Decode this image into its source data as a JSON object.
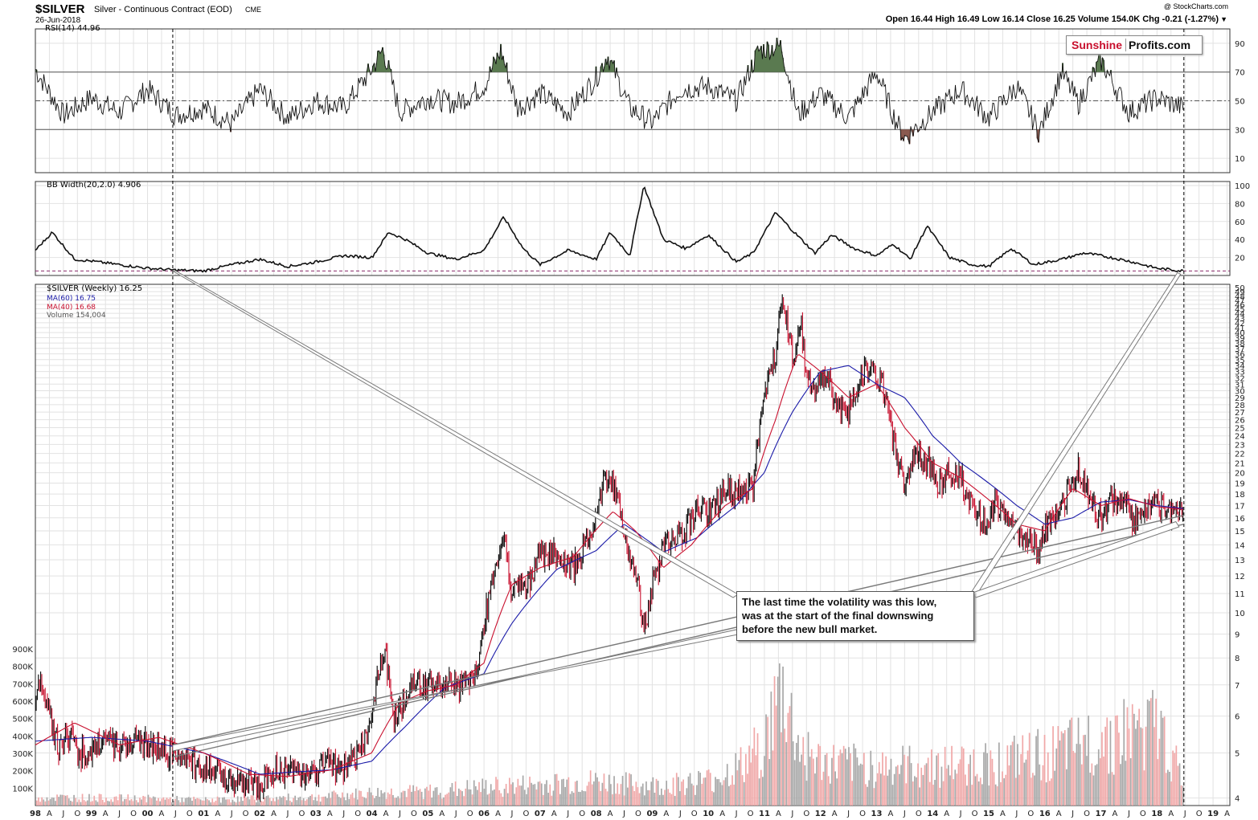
{
  "header": {
    "symbol": "$SILVER",
    "description": "Silver - Continuous Contract (EOD)",
    "exchange": "CME",
    "date": "26-Jun-2018",
    "ohlc": "Open 16.44  High 16.49  Low 16.14  Close 16.25  Volume 154.0K  Chg -0.21 (-1.27%)",
    "chg_marker": "▼",
    "credit": "@ StockCharts.com"
  },
  "logo": {
    "part1": "Sunshine",
    "part2": "Profits.com"
  },
  "colors": {
    "price": "#000000",
    "price_down": "#c8102e",
    "ma60": "#1a1aa8",
    "ma40": "#c8102e",
    "volume_up": "#a8a8a8",
    "volume_down": "#f0a8a8",
    "rsi_over": "#5a7a50",
    "rsi_under": "#8a5a50",
    "trendline": "#7a7a7a",
    "dashed": "#000000",
    "bb_ref": "#8a2a6a"
  },
  "chart_data": [
    {
      "type": "line",
      "panel": "rsi",
      "label": "RSI(14) 44.96",
      "ylim": [
        0,
        100
      ],
      "y_ticks": [
        "90",
        "70",
        "50",
        "30",
        "10"
      ],
      "levels": [
        70,
        50,
        30
      ],
      "x": [
        1998.0,
        1998.5,
        1999.0,
        1999.5,
        2000.0,
        2000.5,
        2001.0,
        2001.5,
        2002.0,
        2002.5,
        2003.0,
        2003.5,
        2004.0,
        2004.2,
        2004.5,
        2005.0,
        2005.5,
        2006.0,
        2006.3,
        2006.6,
        2007.0,
        2007.5,
        2008.0,
        2008.2,
        2008.6,
        2009.0,
        2009.5,
        2010.0,
        2010.5,
        2010.9,
        2011.3,
        2011.6,
        2012.0,
        2012.5,
        2013.0,
        2013.3,
        2013.5,
        2014.0,
        2014.5,
        2015.0,
        2015.5,
        2015.9,
        2016.3,
        2016.6,
        2017.0,
        2017.5,
        2018.0,
        2018.48
      ],
      "values": [
        72,
        40,
        52,
        42,
        58,
        40,
        45,
        34,
        58,
        38,
        50,
        45,
        72,
        86,
        42,
        52,
        48,
        60,
        85,
        45,
        55,
        42,
        66,
        82,
        45,
        35,
        58,
        60,
        50,
        85,
        88,
        40,
        55,
        38,
        70,
        40,
        24,
        42,
        58,
        38,
        60,
        28,
        70,
        48,
        78,
        42,
        52,
        45
      ]
    },
    {
      "type": "line",
      "panel": "bb_width",
      "label": "BB Width(20,2.0) 4.906",
      "ylim": [
        0,
        100
      ],
      "y_ticks": [
        "100",
        "80",
        "60",
        "40",
        "20"
      ],
      "reference_level": 5,
      "x": [
        1998.0,
        1998.3,
        1998.7,
        1999.0,
        1999.5,
        2000.0,
        2000.5,
        2001.0,
        2001.5,
        2002.0,
        2002.5,
        2003.0,
        2003.5,
        2004.0,
        2004.3,
        2004.6,
        2005.0,
        2005.5,
        2006.0,
        2006.35,
        2006.7,
        2007.0,
        2007.5,
        2008.0,
        2008.25,
        2008.6,
        2008.85,
        2009.2,
        2009.6,
        2010.0,
        2010.5,
        2010.8,
        2011.2,
        2011.5,
        2011.9,
        2012.2,
        2012.6,
        2013.0,
        2013.3,
        2013.6,
        2013.9,
        2014.3,
        2014.7,
        2015.0,
        2015.4,
        2015.8,
        2016.3,
        2016.7,
        2017.0,
        2017.5,
        2018.0,
        2018.48
      ],
      "values": [
        28,
        48,
        18,
        16,
        12,
        8,
        6,
        5,
        12,
        18,
        10,
        15,
        22,
        20,
        48,
        40,
        25,
        18,
        28,
        65,
        30,
        12,
        28,
        18,
        48,
        22,
        100,
        40,
        30,
        45,
        15,
        25,
        70,
        50,
        25,
        45,
        30,
        22,
        35,
        18,
        55,
        20,
        12,
        10,
        30,
        12,
        18,
        25,
        22,
        16,
        8,
        4.9
      ]
    },
    {
      "type": "line",
      "panel": "price",
      "label": "$SILVER (Weekly) 16.25",
      "scale": "log",
      "ylim": [
        3.9,
        50
      ],
      "y_ticks": [
        "50",
        "49",
        "48",
        "47",
        "46",
        "45",
        "44",
        "43",
        "42",
        "41",
        "40",
        "39",
        "38",
        "37",
        "36",
        "35",
        "34",
        "33",
        "32",
        "31",
        "30",
        "29",
        "28",
        "27",
        "26",
        "25",
        "24",
        "23",
        "22",
        "21",
        "20",
        "19",
        "18",
        "17",
        "16",
        "15",
        "14",
        "13",
        "12",
        "11",
        "10",
        "9",
        "8",
        "7",
        "6",
        "5",
        "4"
      ],
      "series": [
        {
          "name": "$SILVER (Weekly) 16.25",
          "x": [
            1998.0,
            1998.1,
            1998.25,
            1998.4,
            1998.6,
            1998.8,
            1999.0,
            1999.3,
            1999.6,
            1999.8,
            2000.0,
            2000.3,
            2000.6,
            2000.9,
            2001.2,
            2001.5,
            2001.8,
            2002.0,
            2002.3,
            2002.6,
            2002.9,
            2003.2,
            2003.5,
            2003.8,
            2004.0,
            2004.1,
            2004.25,
            2004.4,
            2004.6,
            2004.8,
            2005.0,
            2005.3,
            2005.6,
            2005.9,
            2006.0,
            2006.2,
            2006.35,
            2006.5,
            2006.8,
            2007.0,
            2007.3,
            2007.6,
            2007.9,
            2008.0,
            2008.2,
            2008.4,
            2008.6,
            2008.75,
            2008.85,
            2009.0,
            2009.3,
            2009.6,
            2009.9,
            2010.0,
            2010.3,
            2010.6,
            2010.8,
            2011.0,
            2011.2,
            2011.32,
            2011.5,
            2011.65,
            2011.75,
            2011.9,
            2012.1,
            2012.3,
            2012.5,
            2012.7,
            2012.9,
            2013.1,
            2013.3,
            2013.5,
            2013.7,
            2013.9,
            2014.1,
            2014.3,
            2014.5,
            2014.7,
            2014.9,
            2015.1,
            2015.3,
            2015.5,
            2015.7,
            2015.9,
            2016.0,
            2016.2,
            2016.4,
            2016.6,
            2016.8,
            2017.0,
            2017.2,
            2017.4,
            2017.6,
            2017.8,
            2018.0,
            2018.2,
            2018.48
          ],
          "values": [
            6.2,
            7.2,
            6.0,
            5.1,
            5.5,
            5.0,
            5.1,
            5.3,
            5.2,
            5.4,
            5.2,
            5.0,
            5.0,
            4.7,
            4.5,
            4.4,
            4.3,
            4.25,
            4.65,
            4.6,
            4.5,
            4.75,
            4.6,
            5.0,
            6.0,
            7.5,
            8.0,
            5.8,
            6.6,
            7.3,
            6.9,
            7.1,
            7.0,
            7.7,
            9.5,
            12.5,
            14.5,
            11.0,
            11.5,
            13.5,
            13.3,
            12.5,
            14.5,
            16.5,
            20.0,
            17.0,
            13.0,
            11.5,
            9.0,
            11.5,
            14.5,
            15.0,
            17.5,
            16.0,
            18.5,
            18.0,
            19.0,
            28.5,
            36.0,
            48.5,
            35.5,
            42.0,
            32.0,
            30.0,
            33.0,
            28.0,
            27.0,
            32.0,
            34.0,
            31.0,
            23.0,
            18.5,
            22.0,
            21.0,
            19.0,
            20.0,
            19.5,
            17.0,
            15.5,
            17.0,
            16.5,
            15.0,
            14.5,
            13.8,
            15.0,
            16.0,
            18.0,
            20.5,
            17.5,
            16.0,
            17.5,
            17.8,
            15.5,
            17.0,
            17.3,
            16.5,
            16.25
          ]
        },
        {
          "name": "MA(60) 16.75",
          "x": [
            1998.0,
            1999.0,
            2000.0,
            2001.0,
            2002.0,
            2002.6,
            2003.3,
            2004.0,
            2004.6,
            2005.3,
            2006.0,
            2006.5,
            2007.3,
            2008.0,
            2008.5,
            2009.2,
            2009.8,
            2010.5,
            2011.0,
            2011.5,
            2012.0,
            2012.5,
            2013.0,
            2013.5,
            2014.0,
            2014.5,
            2015.0,
            2015.5,
            2016.0,
            2016.5,
            2017.0,
            2017.5,
            2018.0,
            2018.48
          ],
          "values": [
            5.3,
            5.4,
            5.3,
            5.0,
            4.5,
            4.55,
            4.6,
            4.8,
            5.7,
            6.9,
            7.4,
            9.5,
            12.4,
            13.6,
            15.5,
            13.5,
            14.5,
            17.0,
            20.0,
            27.0,
            33.0,
            34.0,
            31.0,
            29.0,
            24.0,
            21.0,
            19.0,
            17.0,
            15.5,
            16.0,
            17.3,
            17.5,
            17.0,
            16.75
          ]
        },
        {
          "name": "MA(40) 16.68",
          "x": [
            1998.0,
            1998.7,
            1999.5,
            2000.2,
            2001.0,
            2001.8,
            2002.5,
            2003.3,
            2004.0,
            2004.5,
            2005.0,
            2005.5,
            2006.0,
            2006.5,
            2007.0,
            2007.6,
            2008.3,
            2008.7,
            2009.2,
            2009.7,
            2010.3,
            2010.8,
            2011.2,
            2011.6,
            2012.0,
            2012.5,
            2013.0,
            2013.5,
            2014.0,
            2014.5,
            2015.0,
            2015.5,
            2016.0,
            2016.5,
            2017.0,
            2017.5,
            2018.0,
            2018.48
          ],
          "values": [
            5.2,
            5.8,
            5.2,
            5.4,
            5.0,
            4.5,
            4.45,
            4.6,
            5.0,
            6.4,
            6.8,
            7.0,
            7.8,
            11.5,
            12.5,
            13.2,
            16.5,
            15.0,
            12.5,
            14.0,
            17.0,
            18.5,
            26.0,
            36.0,
            33.0,
            29.0,
            31.0,
            25.0,
            21.0,
            19.5,
            17.5,
            15.5,
            15.0,
            18.5,
            17.0,
            17.6,
            16.9,
            16.68
          ]
        }
      ]
    },
    {
      "type": "bar",
      "panel": "volume",
      "label": "Volume 154,004",
      "ylim": [
        0,
        900000
      ],
      "y_ticks": [
        "900K",
        "800K",
        "700K",
        "600K",
        "500K",
        "400K",
        "300K",
        "200K",
        "100K"
      ],
      "x": [
        1998.0,
        1999.0,
        2000.0,
        2001.0,
        2002.0,
        2003.0,
        2004.0,
        2005.0,
        2006.0,
        2007.0,
        2008.0,
        2009.0,
        2010.0,
        2010.6,
        2011.0,
        2011.3,
        2011.6,
        2012.0,
        2013.0,
        2014.0,
        2015.0,
        2016.0,
        2016.6,
        2017.0,
        2017.5,
        2018.0,
        2018.48
      ],
      "values": [
        60000,
        55000,
        50000,
        40000,
        50000,
        60000,
        90000,
        100000,
        130000,
        150000,
        170000,
        140000,
        180000,
        280000,
        450000,
        820000,
        420000,
        300000,
        280000,
        280000,
        300000,
        360000,
        420000,
        480000,
        520000,
        560000,
        154004
      ]
    }
  ],
  "x_axis_labels": [
    "98",
    "A",
    "J",
    "O",
    "99",
    "A",
    "J",
    "O",
    "00",
    "A",
    "J",
    "O",
    "01",
    "A",
    "J",
    "O",
    "02",
    "A",
    "J",
    "O",
    "03",
    "A",
    "J",
    "O",
    "04",
    "A",
    "J",
    "O",
    "05",
    "A",
    "J",
    "O",
    "06",
    "A",
    "J",
    "O",
    "07",
    "A",
    "J",
    "O",
    "08",
    "A",
    "J",
    "O",
    "09",
    "A",
    "J",
    "O",
    "10",
    "A",
    "J",
    "O",
    "11",
    "A",
    "J",
    "O",
    "12",
    "A",
    "J",
    "O",
    "13",
    "A",
    "J",
    "O",
    "14",
    "A",
    "J",
    "O",
    "15",
    "A",
    "J",
    "O",
    "16",
    "A",
    "J",
    "O",
    "17",
    "A",
    "J",
    "O",
    "18",
    "A",
    "J",
    "O",
    "19",
    "A"
  ],
  "price_legend": {
    "ma60": "MA(60) 16.75",
    "ma40": "MA(40) 16.68",
    "volume": "Volume 154,004"
  },
  "annotation": {
    "lines": [
      "The last time the volatility was this low,",
      "was at the start of the final downswing",
      "before the new bull market."
    ]
  },
  "markers": {
    "dashed_dates": [
      2000.45,
      2018.48
    ]
  },
  "trendlines": [
    {
      "from": [
        2000.45,
        4.9
      ],
      "to": [
        2018.48,
        15.5
      ]
    },
    {
      "from": [
        2000.45,
        5.2
      ],
      "to": [
        2018.48,
        16.2
      ]
    }
  ]
}
